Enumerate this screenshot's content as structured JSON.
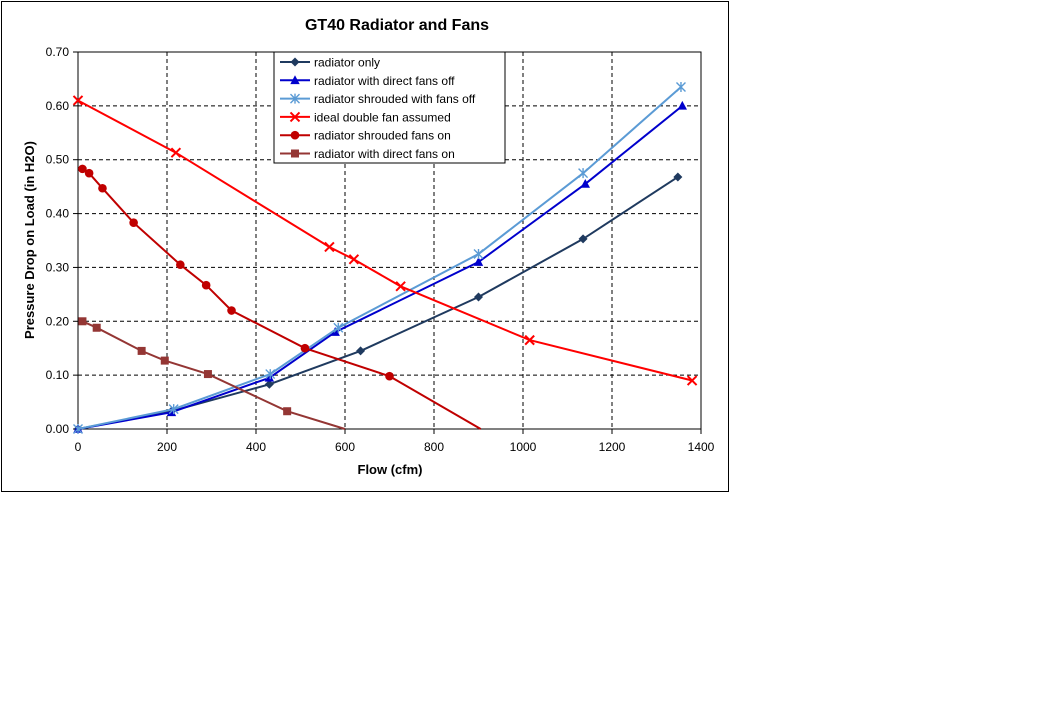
{
  "chart_data": {
    "type": "line",
    "title": "GT40 Radiator and Fans",
    "xlabel": "Flow (cfm)",
    "ylabel": "Pressure Drop on Load (in H2O)",
    "xlim": [
      0,
      1400
    ],
    "ylim": [
      0,
      0.7
    ],
    "x_ticks": [
      0,
      200,
      400,
      600,
      800,
      1000,
      1200,
      1400
    ],
    "x_tick_labels": [
      "0",
      "200",
      "400",
      "600",
      "800",
      "1000",
      "1200",
      "1400"
    ],
    "y_ticks": [
      0,
      0.1,
      0.2,
      0.3,
      0.4,
      0.5,
      0.6,
      0.7
    ],
    "y_tick_labels": [
      "0.00",
      "0.10",
      "0.20",
      "0.30",
      "0.40",
      "0.50",
      "0.60",
      "0.70"
    ],
    "grid": true,
    "legend_position": "top-center",
    "series": [
      {
        "name": "radiator only",
        "color": "#1F3A5F",
        "marker": "diamond",
        "points": [
          [
            0,
            0.0
          ],
          [
            210,
            0.033
          ],
          [
            430,
            0.083
          ],
          [
            635,
            0.145
          ],
          [
            900,
            0.245
          ],
          [
            1135,
            0.353
          ],
          [
            1348,
            0.468
          ]
        ]
      },
      {
        "name": "radiator with direct fans off",
        "color": "#0000CC",
        "marker": "triangle",
        "points": [
          [
            0,
            0.0
          ],
          [
            210,
            0.031
          ],
          [
            430,
            0.095
          ],
          [
            578,
            0.18
          ],
          [
            900,
            0.31
          ],
          [
            1140,
            0.455
          ],
          [
            1358,
            0.6
          ]
        ]
      },
      {
        "name": "radiator shrouded with fans off",
        "color": "#5B9BD5",
        "marker": "star",
        "points": [
          [
            0,
            0.0
          ],
          [
            215,
            0.037
          ],
          [
            432,
            0.102
          ],
          [
            585,
            0.188
          ],
          [
            900,
            0.325
          ],
          [
            1135,
            0.475
          ],
          [
            1355,
            0.635
          ]
        ]
      },
      {
        "name": "ideal double fan assumed",
        "color": "#FF0000",
        "marker": "x",
        "points": [
          [
            0,
            0.61
          ],
          [
            220,
            0.513
          ],
          [
            565,
            0.338
          ],
          [
            620,
            0.315
          ],
          [
            725,
            0.265
          ],
          [
            1015,
            0.165
          ],
          [
            1380,
            0.09
          ]
        ]
      },
      {
        "name": "radiator shrouded fans on",
        "color": "#C00000",
        "marker": "circle",
        "points": [
          [
            10,
            0.483
          ],
          [
            25,
            0.475
          ],
          [
            55,
            0.447
          ],
          [
            125,
            0.383
          ],
          [
            230,
            0.305
          ],
          [
            288,
            0.267
          ],
          [
            345,
            0.22
          ],
          [
            510,
            0.15
          ],
          [
            700,
            0.098
          ],
          [
            905,
            0.0
          ]
        ]
      },
      {
        "name": "radiator with direct fans on",
        "color": "#943634",
        "marker": "square",
        "points": [
          [
            10,
            0.2
          ],
          [
            42,
            0.188
          ],
          [
            143,
            0.145
          ],
          [
            195,
            0.127
          ],
          [
            292,
            0.102
          ],
          [
            470,
            0.033
          ],
          [
            600,
            0.0
          ]
        ]
      }
    ]
  }
}
